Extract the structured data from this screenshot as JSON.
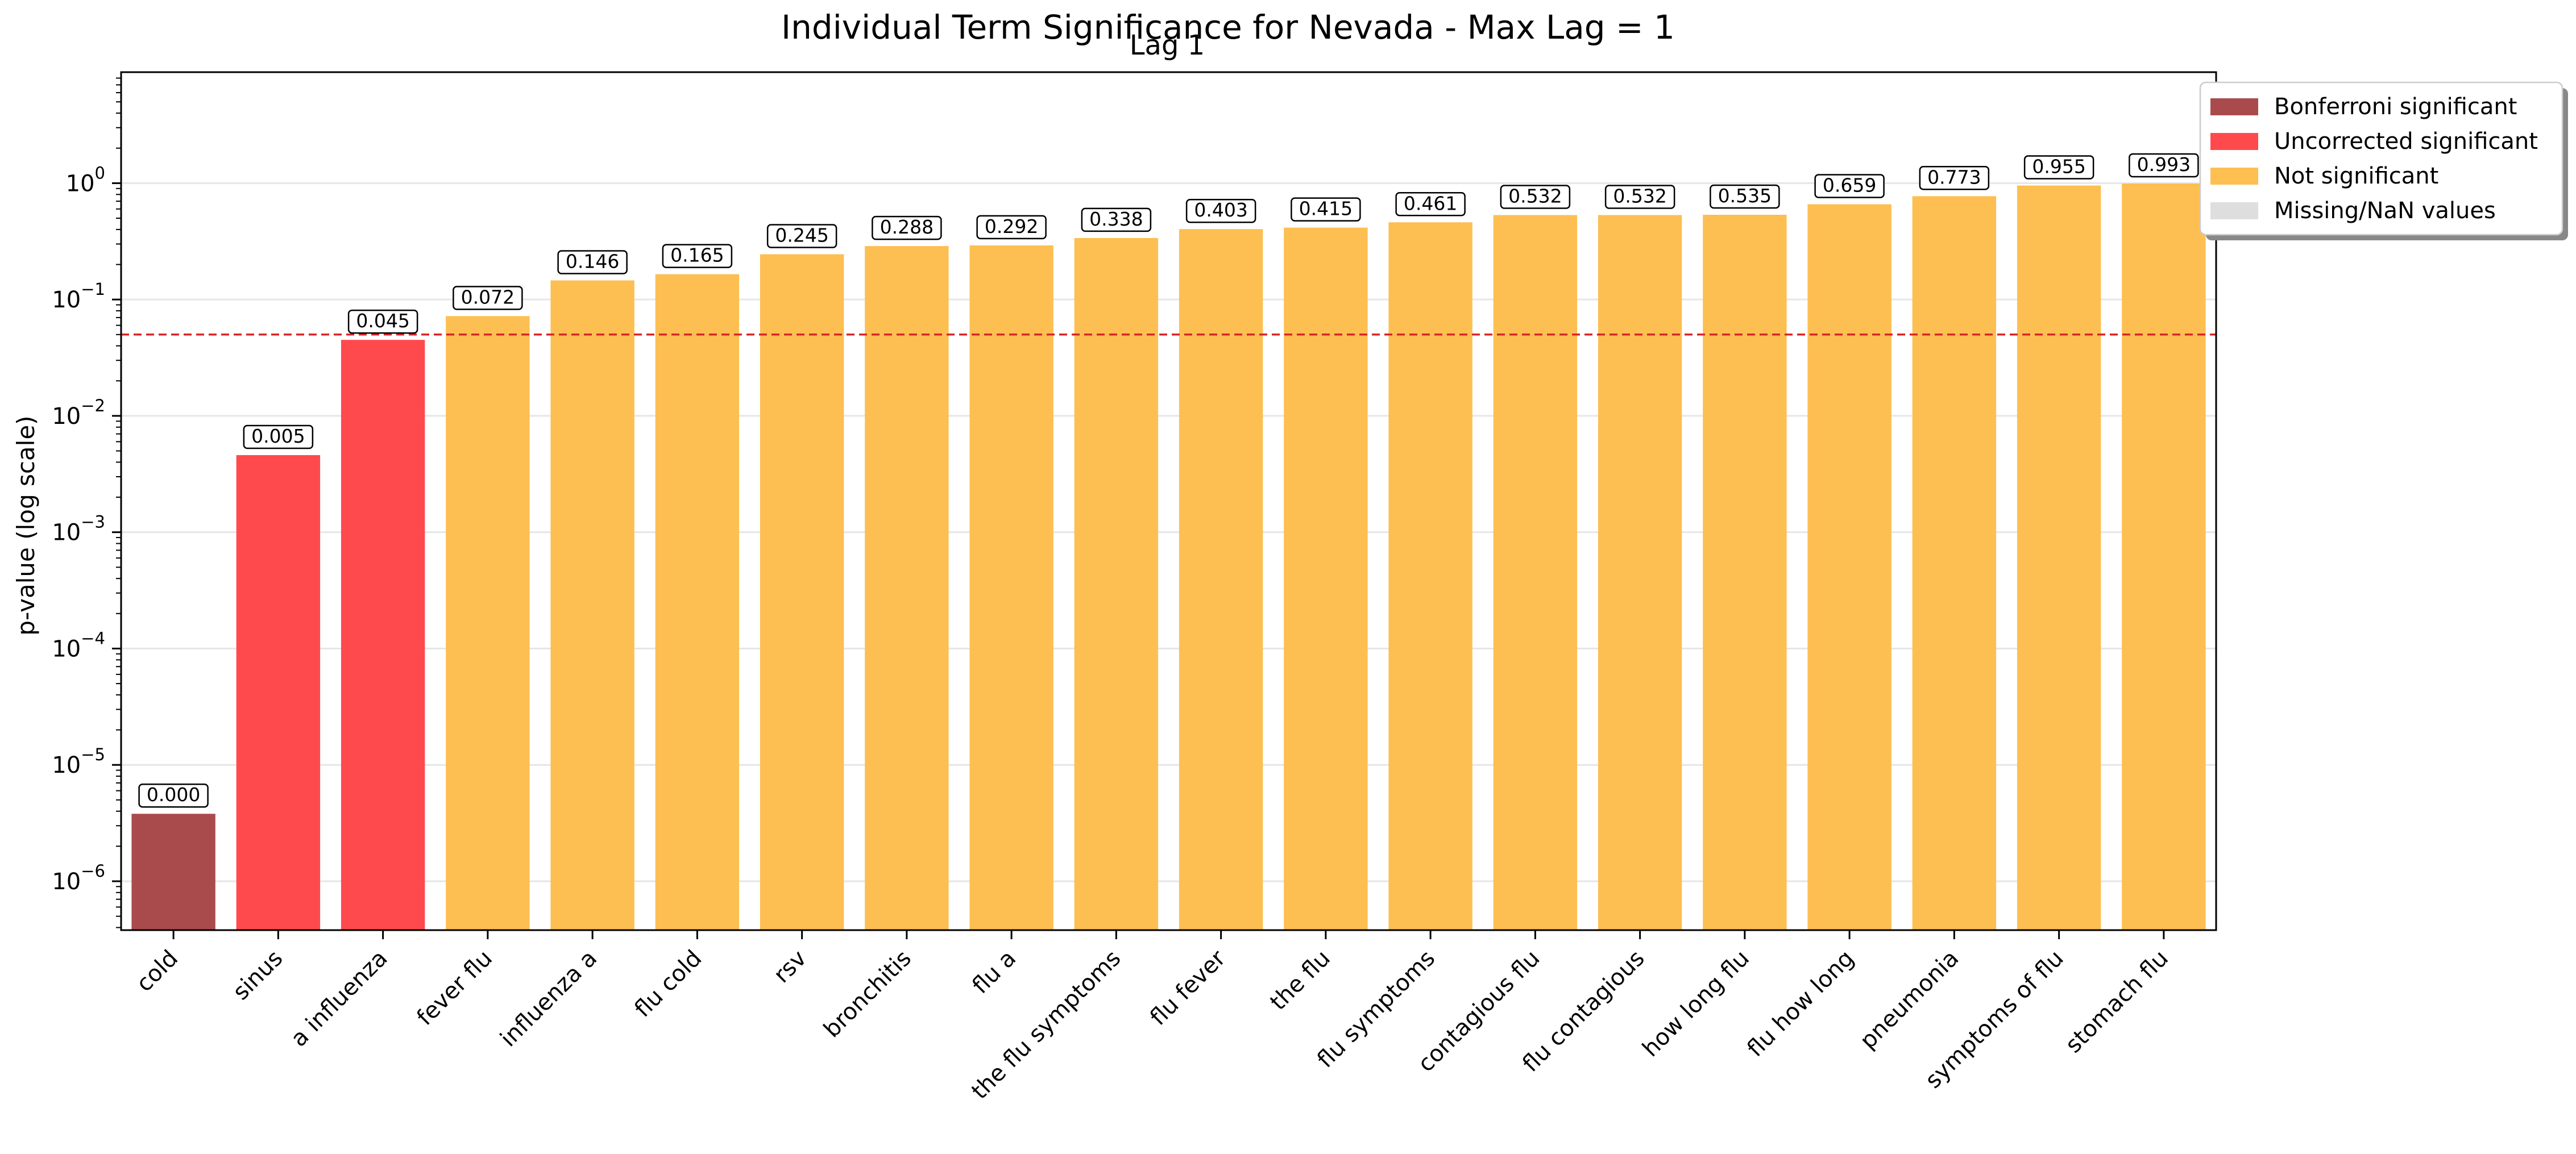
{
  "chart_data": {
    "type": "bar",
    "title": "Individual Term Significance for Nevada - Max Lag = 1",
    "subtitle": "Lag 1",
    "ylabel": "p-value (log scale)",
    "yscale": "log",
    "ylim": [
      3.8e-07,
      9.0
    ],
    "grid": "y",
    "threshold": {
      "value": 0.05,
      "color": "#d62728",
      "style": "dashed"
    },
    "categories": [
      "cold",
      "sinus",
      "a influenza",
      "fever flu",
      "influenza a",
      "flu cold",
      "rsv",
      "bronchitis",
      "flu a",
      "the flu symptoms",
      "flu fever",
      "the flu",
      "flu symptoms",
      "contagious flu",
      "flu contagious",
      "how long flu",
      "flu how long",
      "pneumonia",
      "symptoms of flu",
      "stomach flu"
    ],
    "values": [
      3.8e-06,
      0.0046,
      0.045,
      0.072,
      0.146,
      0.165,
      0.245,
      0.288,
      0.292,
      0.338,
      0.403,
      0.415,
      0.461,
      0.532,
      0.532,
      0.535,
      0.659,
      0.773,
      0.955,
      0.993
    ],
    "value_labels": [
      "0.000",
      "0.005",
      "0.045",
      "0.072",
      "0.146",
      "0.165",
      "0.245",
      "0.288",
      "0.292",
      "0.338",
      "0.403",
      "0.415",
      "0.461",
      "0.532",
      "0.532",
      "0.535",
      "0.659",
      "0.773",
      "0.955",
      "0.993"
    ],
    "status": [
      "bonferroni",
      "uncorrected",
      "uncorrected",
      "not",
      "not",
      "not",
      "not",
      "not",
      "not",
      "not",
      "not",
      "not",
      "not",
      "not",
      "not",
      "not",
      "not",
      "not",
      "not",
      "not"
    ],
    "yticks": [
      {
        "value": 1e-06,
        "base": "10",
        "exp": "−6"
      },
      {
        "value": 1e-05,
        "base": "10",
        "exp": "−5"
      },
      {
        "value": 0.0001,
        "base": "10",
        "exp": "−4"
      },
      {
        "value": 0.001,
        "base": "10",
        "exp": "−3"
      },
      {
        "value": 0.01,
        "base": "10",
        "exp": "−2"
      },
      {
        "value": 0.1,
        "base": "10",
        "exp": "−1"
      },
      {
        "value": 1,
        "base": "10",
        "exp": "0"
      }
    ],
    "legend": {
      "position": "top-right",
      "entries": [
        {
          "key": "bonferroni",
          "label": "Bonferroni significant",
          "color": "#a94b4d"
        },
        {
          "key": "uncorrected",
          "label": "Uncorrected significant",
          "color": "#ff4a4d"
        },
        {
          "key": "not",
          "label": "Not significant",
          "color": "#fdbf52"
        },
        {
          "key": "missing",
          "label": "Missing/NaN values",
          "color": "#dedede"
        }
      ]
    }
  }
}
